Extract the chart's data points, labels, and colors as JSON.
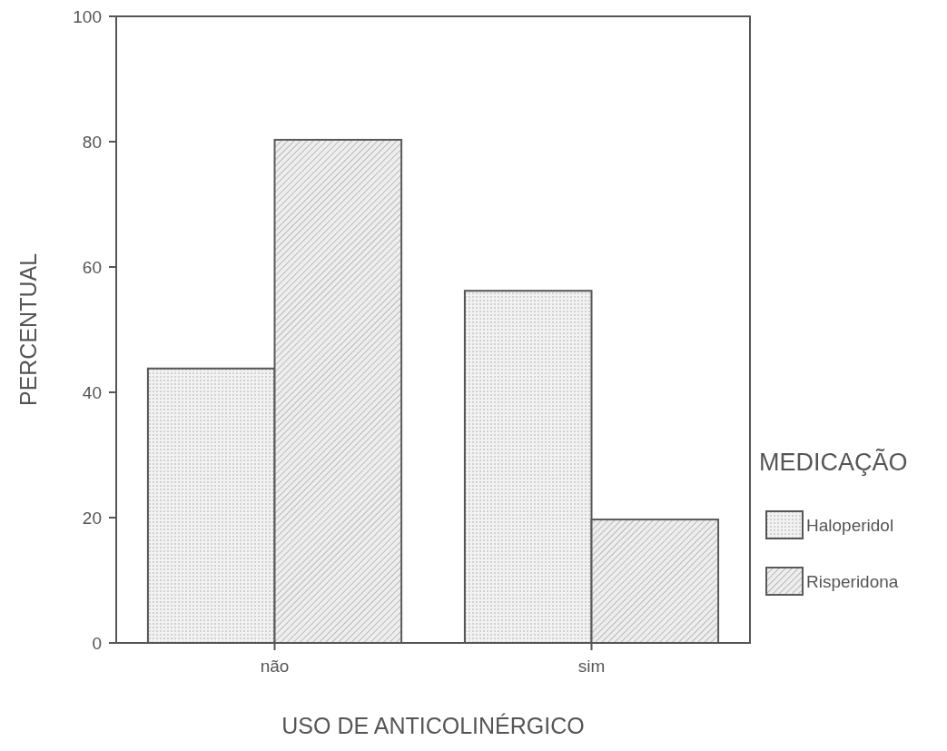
{
  "chart_data": {
    "type": "bar",
    "xlabel": "USO DE ANTICOLINÉRGICO",
    "ylabel": "PERCENTUAL",
    "legend_title": "MEDICAÇÃO",
    "categories": [
      "não",
      "sim"
    ],
    "series": [
      {
        "name": "Haloperidol",
        "color": "#555555",
        "values": [
          43.8,
          56.2
        ]
      },
      {
        "name": "Risperidona",
        "color": "#5a5a5a",
        "values": [
          80.3,
          19.7
        ]
      }
    ],
    "ylim": [
      0,
      100
    ],
    "yticks": [
      0,
      20,
      40,
      60,
      80,
      100
    ],
    "grid": false,
    "legend": "right"
  }
}
